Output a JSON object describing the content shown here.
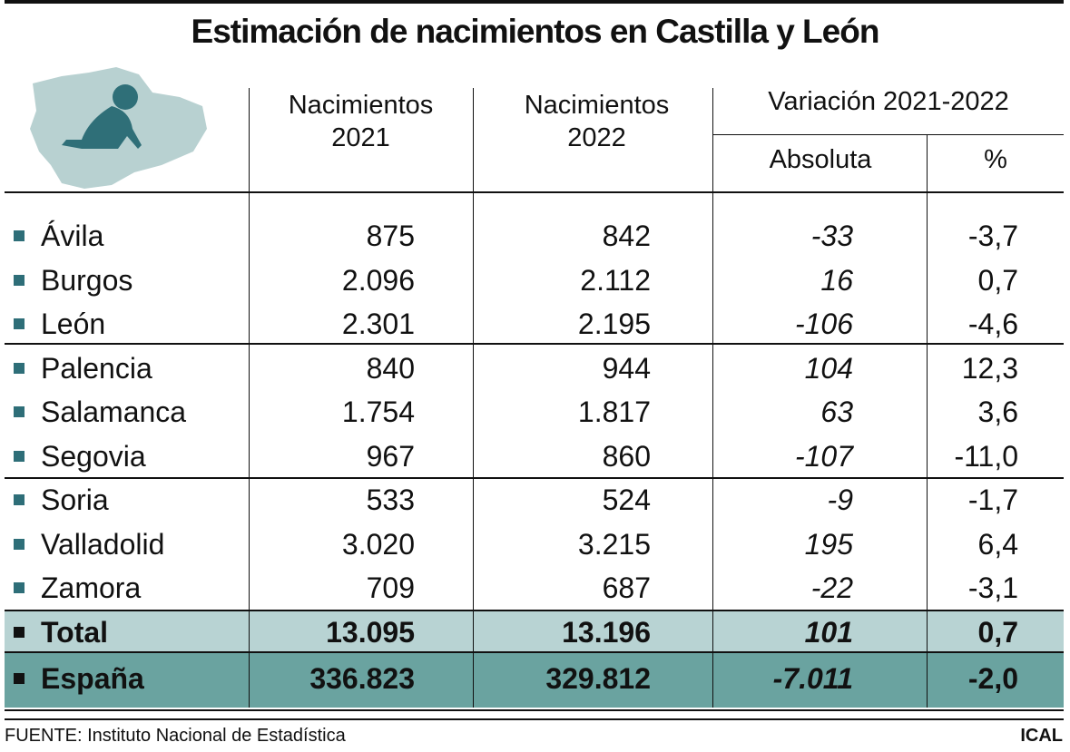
{
  "title": "Estimación de nacimientos en Castilla y León",
  "header": {
    "births_2021": "Nacimientos 2021",
    "births_2022": "Nacimientos 2022",
    "variation": "Variación 2021-2022",
    "absolute": "Absoluta",
    "percent": "%"
  },
  "rows": [
    [
      "Ávila",
      "875",
      "842",
      "-33",
      "-3,7"
    ],
    [
      "Burgos",
      "2.096",
      "2.112",
      "16",
      "0,7"
    ],
    [
      "León",
      "2.301",
      "2.195",
      "-106",
      "-4,6"
    ],
    [
      "Palencia",
      "840",
      "944",
      "104",
      "12,3"
    ],
    [
      "Salamanca",
      "1.754",
      "1.817",
      "63",
      "3,6"
    ],
    [
      "Segovia",
      "967",
      "860",
      "-107",
      "-11,0"
    ],
    [
      "Soria",
      "533",
      "524",
      "-9",
      "-1,7"
    ],
    [
      "Valladolid",
      "3.020",
      "3.215",
      "195",
      "6,4"
    ],
    [
      "Zamora",
      "709",
      "687",
      "-22",
      "-3,1"
    ]
  ],
  "total": [
    "Total",
    "13.095",
    "13.196",
    "101",
    "0,7"
  ],
  "spain": [
    "España",
    "336.823",
    "329.812",
    "-7.011",
    "-2,0"
  ],
  "footer": {
    "source": "FUENTE: Instituto Nacional de Estadística",
    "agency": "ICAL"
  }
}
